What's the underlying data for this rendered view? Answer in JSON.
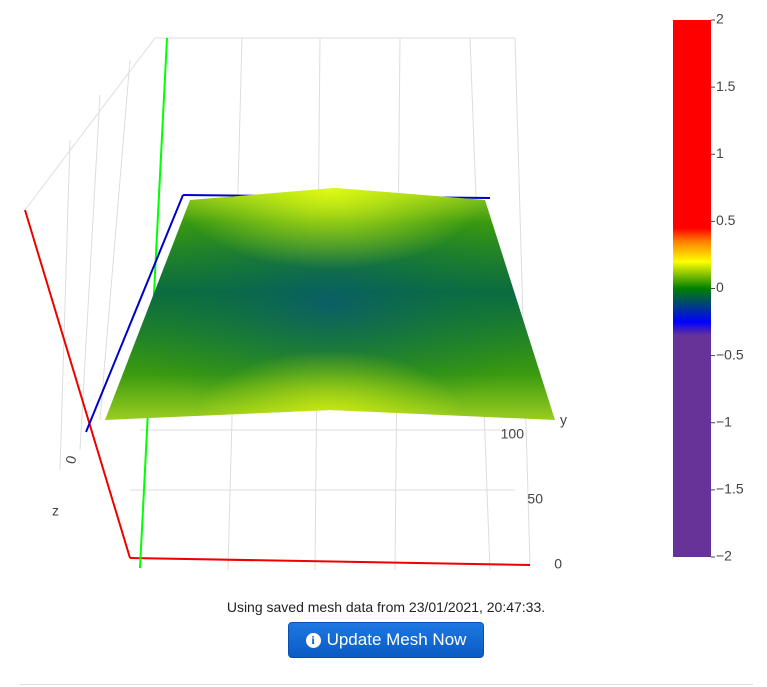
{
  "plot": {
    "axis_y_label": "y",
    "axis_z_label": "z",
    "yticks": [
      0,
      50,
      100
    ],
    "ylim": [
      0,
      100
    ],
    "zticks": [
      0
    ],
    "colorbar": {
      "lim": [
        -2,
        2
      ],
      "ticks": [
        2,
        1.5,
        1,
        0.5,
        0,
        {
          "value": -0.5,
          "label": "−0.5"
        },
        {
          "value": -1,
          "label": "−1"
        },
        {
          "value": -1.5,
          "label": "−1.5"
        },
        {
          "value": -2,
          "label": "−2"
        }
      ],
      "colorscale": [
        [
          -2,
          "#673399"
        ],
        [
          -0.35,
          "#673399"
        ],
        [
          -0.25,
          "#0000ff"
        ],
        [
          0,
          "#008000"
        ],
        [
          0.2,
          "#ffff00"
        ],
        [
          0.35,
          "#ff7f00"
        ],
        [
          0.45,
          "#ff0000"
        ],
        [
          2,
          "#ff0000"
        ]
      ]
    }
  },
  "status": "Using saved mesh data from 23/01/2021, 20:47:33.",
  "button": {
    "label": "Update Mesh Now"
  }
}
